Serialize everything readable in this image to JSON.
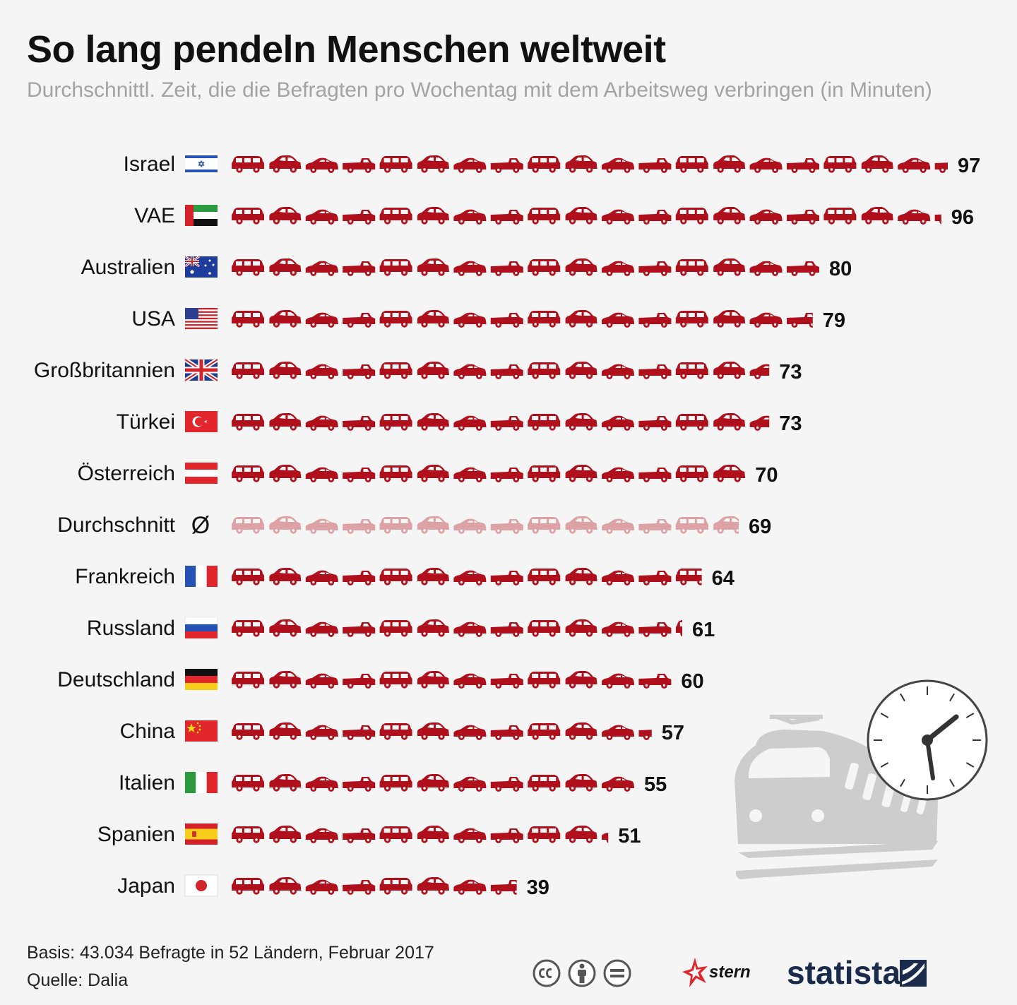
{
  "header": {
    "title": "So lang pendeln Menschen weltweit",
    "subtitle": "Durchschnittl. Zeit, die die Befragten pro Wochentag mit dem Arbeitsweg verbringen (in Minuten)"
  },
  "chart_data": {
    "type": "bar",
    "title": "So lang pendeln Menschen weltweit",
    "subtitle": "Durchschnittl. Zeit, die die Befragten pro Wochentag mit dem Arbeitsweg verbringen (in Minuten)",
    "unit": "Minuten",
    "minutes_per_icon": 5,
    "categories": [
      "Israel",
      "VAE",
      "Australien",
      "USA",
      "Großbritannien",
      "Türkei",
      "Österreich",
      "Durchschnitt",
      "Frankreich",
      "Russland",
      "Deutschland",
      "China",
      "Italien",
      "Spanien",
      "Japan"
    ],
    "values": [
      97,
      96,
      80,
      79,
      73,
      73,
      70,
      69,
      64,
      61,
      60,
      57,
      55,
      51,
      39
    ],
    "flags": [
      "israel",
      "uae",
      "australia",
      "usa",
      "uk",
      "turkey",
      "austria",
      "average",
      "france",
      "russia",
      "germany",
      "china",
      "italy",
      "spain",
      "japan"
    ],
    "highlight_index": 7,
    "average_symbol": "Ø",
    "colors": {
      "bar": "#b00f1c",
      "bar_average": "#dda2a6",
      "label": "#111111"
    }
  },
  "footer": {
    "basis": "Basis: 43.034 Befragte in 52 Ländern, Februar 2017",
    "source": "Quelle: Dalia"
  },
  "branding": {
    "license_icons": [
      "cc-icon",
      "by-icon",
      "nd-icon"
    ],
    "stern": "stern",
    "statista": "statista"
  },
  "decoration": {
    "illustration": "train-icon",
    "clock": "clock-icon"
  }
}
